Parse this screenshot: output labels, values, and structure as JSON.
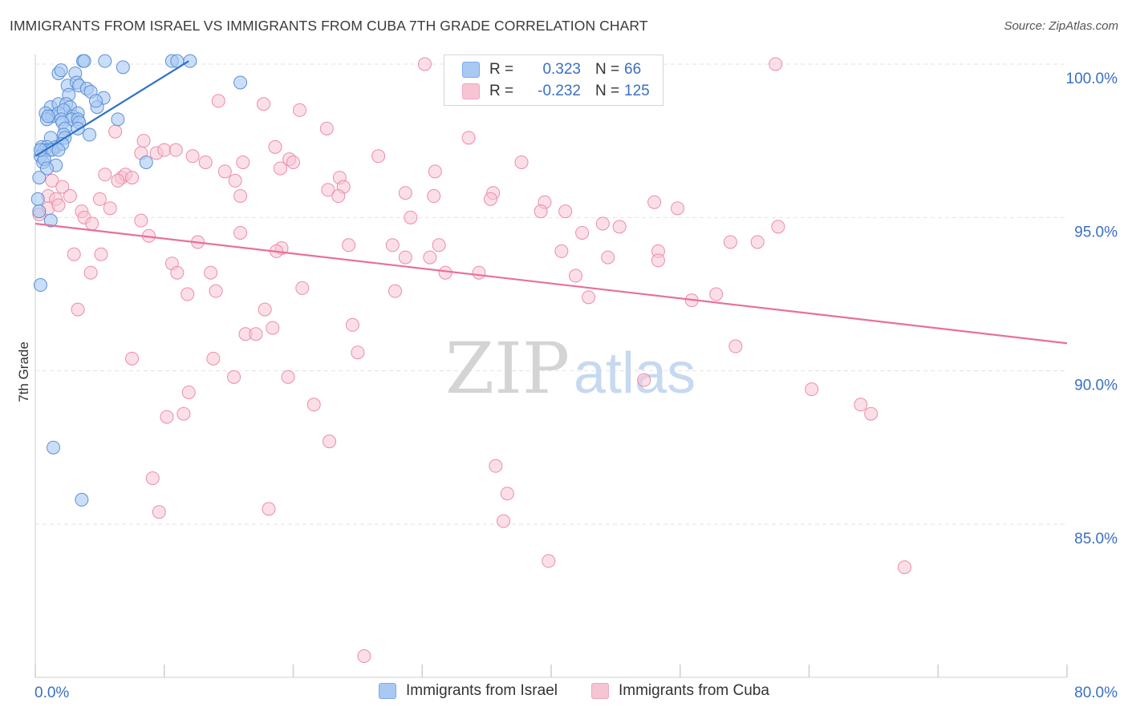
{
  "header": {
    "title": "IMMIGRANTS FROM ISRAEL VS IMMIGRANTS FROM CUBA 7TH GRADE CORRELATION CHART",
    "source": "Source: ZipAtlas.com"
  },
  "watermark": {
    "zip": "ZIP",
    "atlas": "atlas"
  },
  "stats_legend": {
    "rows": [
      {
        "r_label": "R =",
        "r_value": "0.323",
        "n_label": "N =",
        "n_value": "66",
        "color": "#7aaaf0"
      },
      {
        "r_label": "R =",
        "r_value": "-0.232",
        "n_label": "N =",
        "n_value": "125",
        "color": "#f3a3bf"
      }
    ]
  },
  "bottom_legend": {
    "israel": "Immigrants from Israel",
    "cuba": "Immigrants from Cuba"
  },
  "colors": {
    "israel_fill": "#a9c8f2",
    "israel_stroke": "#5b8fd8",
    "israel_line": "#2e72c8",
    "cuba_fill": "#f7c4d4",
    "cuba_stroke": "#ec8cab",
    "cuba_line": "#e8709a",
    "tick_label": "#3a6fc4",
    "grid": "#e3e3e3"
  },
  "chart_data": {
    "type": "scatter",
    "title": "IMMIGRANTS FROM ISRAEL VS IMMIGRANTS FROM CUBA 7TH GRADE CORRELATION CHART",
    "xlabel": "",
    "ylabel": "7th Grade",
    "xlim": [
      0,
      80
    ],
    "ylim": [
      80.7,
      100.9
    ],
    "x_tick_labels": [
      {
        "value": 0,
        "label": "0.0%"
      },
      {
        "value": 80,
        "label": "80.0%"
      }
    ],
    "y_tick_labels": [
      {
        "value": 100,
        "label": "100.0%"
      },
      {
        "value": 95,
        "label": "95.0%"
      },
      {
        "value": 90,
        "label": "90.0%"
      },
      {
        "value": 85,
        "label": "85.0%"
      }
    ],
    "grid": true,
    "legend_position": "top-center",
    "series": [
      {
        "name": "Immigrants from Israel",
        "r": 0.323,
        "n": 66,
        "trend": [
          [
            0.0,
            97.0
          ],
          [
            11.9,
            100.1
          ]
        ],
        "points": [
          [
            3.7,
            100.1
          ],
          [
            3.8,
            100.1
          ],
          [
            5.4,
            100.1
          ],
          [
            10.6,
            100.1
          ],
          [
            11.0,
            100.1
          ],
          [
            12.0,
            100.1
          ],
          [
            1.8,
            99.7
          ],
          [
            2.0,
            99.8
          ],
          [
            3.1,
            99.7
          ],
          [
            6.8,
            99.9
          ],
          [
            2.5,
            99.3
          ],
          [
            3.2,
            99.4
          ],
          [
            3.4,
            99.3
          ],
          [
            4.0,
            99.2
          ],
          [
            15.9,
            99.4
          ],
          [
            2.6,
            99.0
          ],
          [
            4.3,
            99.1
          ],
          [
            5.3,
            98.9
          ],
          [
            1.2,
            98.6
          ],
          [
            1.8,
            98.7
          ],
          [
            2.4,
            98.7
          ],
          [
            2.7,
            98.6
          ],
          [
            4.8,
            98.6
          ],
          [
            4.7,
            98.8
          ],
          [
            0.8,
            98.4
          ],
          [
            1.3,
            98.3
          ],
          [
            1.8,
            98.4
          ],
          [
            2.2,
            98.5
          ],
          [
            2.9,
            98.3
          ],
          [
            3.3,
            98.4
          ],
          [
            0.9,
            98.2
          ],
          [
            1.0,
            98.3
          ],
          [
            2.0,
            98.2
          ],
          [
            2.8,
            98.2
          ],
          [
            3.3,
            98.2
          ],
          [
            6.4,
            98.2
          ],
          [
            2.1,
            98.1
          ],
          [
            3.4,
            98.1
          ],
          [
            2.3,
            97.9
          ],
          [
            3.3,
            97.9
          ],
          [
            2.2,
            97.7
          ],
          [
            4.2,
            97.7
          ],
          [
            2.3,
            97.6
          ],
          [
            1.2,
            97.6
          ],
          [
            1.6,
            97.3
          ],
          [
            2.1,
            97.4
          ],
          [
            0.5,
            97.3
          ],
          [
            0.9,
            97.3
          ],
          [
            0.7,
            97.2
          ],
          [
            1.1,
            97.2
          ],
          [
            1.3,
            97.2
          ],
          [
            1.8,
            97.2
          ],
          [
            0.4,
            97.0
          ],
          [
            0.6,
            96.8
          ],
          [
            0.7,
            96.9
          ],
          [
            1.6,
            96.7
          ],
          [
            0.9,
            96.6
          ],
          [
            8.6,
            96.8
          ],
          [
            0.3,
            96.3
          ],
          [
            0.2,
            95.6
          ],
          [
            0.3,
            95.2
          ],
          [
            1.2,
            94.9
          ],
          [
            0.4,
            92.8
          ],
          [
            1.4,
            87.5
          ],
          [
            3.6,
            85.8
          ],
          [
            0.4,
            97.2
          ]
        ]
      },
      {
        "name": "Immigrants from Cuba",
        "r": -0.232,
        "n": 125,
        "trend": [
          [
            0.0,
            94.8
          ],
          [
            80.0,
            90.9
          ]
        ],
        "points": [
          [
            30.2,
            100.0
          ],
          [
            57.4,
            100.0
          ],
          [
            14.2,
            98.8
          ],
          [
            17.7,
            98.7
          ],
          [
            20.5,
            98.5
          ],
          [
            22.6,
            97.9
          ],
          [
            33.6,
            97.6
          ],
          [
            6.2,
            97.8
          ],
          [
            8.4,
            97.5
          ],
          [
            18.6,
            97.3
          ],
          [
            8.2,
            97.1
          ],
          [
            9.4,
            97.1
          ],
          [
            10.0,
            97.2
          ],
          [
            10.9,
            97.2
          ],
          [
            12.2,
            97.0
          ],
          [
            19.7,
            96.9
          ],
          [
            20.0,
            96.8
          ],
          [
            26.6,
            97.0
          ],
          [
            13.2,
            96.8
          ],
          [
            16.1,
            96.8
          ],
          [
            19.0,
            96.6
          ],
          [
            31.0,
            96.5
          ],
          [
            37.7,
            96.8
          ],
          [
            5.4,
            96.4
          ],
          [
            6.7,
            96.3
          ],
          [
            7.0,
            96.4
          ],
          [
            6.4,
            96.2
          ],
          [
            7.5,
            96.3
          ],
          [
            14.7,
            96.5
          ],
          [
            15.5,
            96.2
          ],
          [
            23.6,
            96.3
          ],
          [
            1.3,
            96.2
          ],
          [
            2.1,
            96.0
          ],
          [
            22.7,
            95.9
          ],
          [
            23.9,
            96.0
          ],
          [
            1.0,
            95.7
          ],
          [
            1.6,
            95.6
          ],
          [
            2.7,
            95.7
          ],
          [
            5.0,
            95.6
          ],
          [
            15.9,
            95.7
          ],
          [
            23.5,
            95.7
          ],
          [
            28.7,
            95.8
          ],
          [
            30.9,
            95.7
          ],
          [
            35.5,
            95.8
          ],
          [
            39.5,
            95.5
          ],
          [
            48.0,
            95.5
          ],
          [
            1.0,
            95.3
          ],
          [
            1.8,
            95.4
          ],
          [
            5.8,
            95.3
          ],
          [
            35.3,
            95.6
          ],
          [
            39.2,
            95.2
          ],
          [
            41.1,
            95.2
          ],
          [
            49.8,
            95.3
          ],
          [
            0.3,
            95.1
          ],
          [
            3.6,
            95.2
          ],
          [
            3.8,
            95.0
          ],
          [
            29.1,
            95.0
          ],
          [
            4.4,
            94.8
          ],
          [
            8.2,
            94.9
          ],
          [
            44.0,
            94.8
          ],
          [
            45.3,
            94.7
          ],
          [
            57.6,
            94.7
          ],
          [
            8.8,
            94.4
          ],
          [
            12.6,
            94.2
          ],
          [
            15.9,
            94.5
          ],
          [
            42.4,
            94.5
          ],
          [
            53.9,
            94.2
          ],
          [
            56.0,
            94.2
          ],
          [
            19.1,
            94.0
          ],
          [
            24.3,
            94.1
          ],
          [
            27.7,
            94.1
          ],
          [
            31.3,
            94.1
          ],
          [
            40.8,
            93.9
          ],
          [
            48.3,
            93.9
          ],
          [
            3.0,
            93.8
          ],
          [
            5.1,
            93.8
          ],
          [
            18.7,
            93.9
          ],
          [
            28.7,
            93.7
          ],
          [
            30.6,
            93.7
          ],
          [
            44.4,
            93.7
          ],
          [
            48.3,
            93.6
          ],
          [
            10.6,
            93.5
          ],
          [
            11.0,
            93.2
          ],
          [
            4.3,
            93.2
          ],
          [
            13.6,
            93.2
          ],
          [
            31.8,
            93.2
          ],
          [
            34.4,
            93.2
          ],
          [
            41.9,
            93.1
          ],
          [
            11.8,
            92.5
          ],
          [
            14.0,
            92.6
          ],
          [
            20.7,
            92.7
          ],
          [
            27.9,
            92.6
          ],
          [
            42.9,
            92.4
          ],
          [
            50.9,
            92.3
          ],
          [
            52.8,
            92.5
          ],
          [
            3.3,
            92.0
          ],
          [
            17.8,
            92.0
          ],
          [
            16.3,
            91.2
          ],
          [
            17.1,
            91.2
          ],
          [
            18.4,
            91.4
          ],
          [
            24.6,
            91.5
          ],
          [
            25.0,
            90.6
          ],
          [
            7.5,
            90.4
          ],
          [
            13.8,
            90.4
          ],
          [
            54.3,
            90.8
          ],
          [
            11.9,
            89.3
          ],
          [
            15.4,
            89.8
          ],
          [
            19.6,
            89.8
          ],
          [
            47.2,
            89.7
          ],
          [
            60.2,
            89.4
          ],
          [
            21.6,
            88.9
          ],
          [
            10.2,
            88.5
          ],
          [
            11.5,
            88.6
          ],
          [
            64.0,
            88.9
          ],
          [
            64.8,
            88.6
          ],
          [
            22.8,
            87.7
          ],
          [
            35.7,
            86.9
          ],
          [
            9.1,
            86.5
          ],
          [
            36.6,
            86.0
          ],
          [
            9.6,
            85.4
          ],
          [
            18.1,
            85.5
          ],
          [
            36.3,
            85.1
          ],
          [
            39.8,
            83.8
          ],
          [
            67.4,
            83.6
          ],
          [
            25.5,
            80.7
          ]
        ]
      }
    ]
  }
}
